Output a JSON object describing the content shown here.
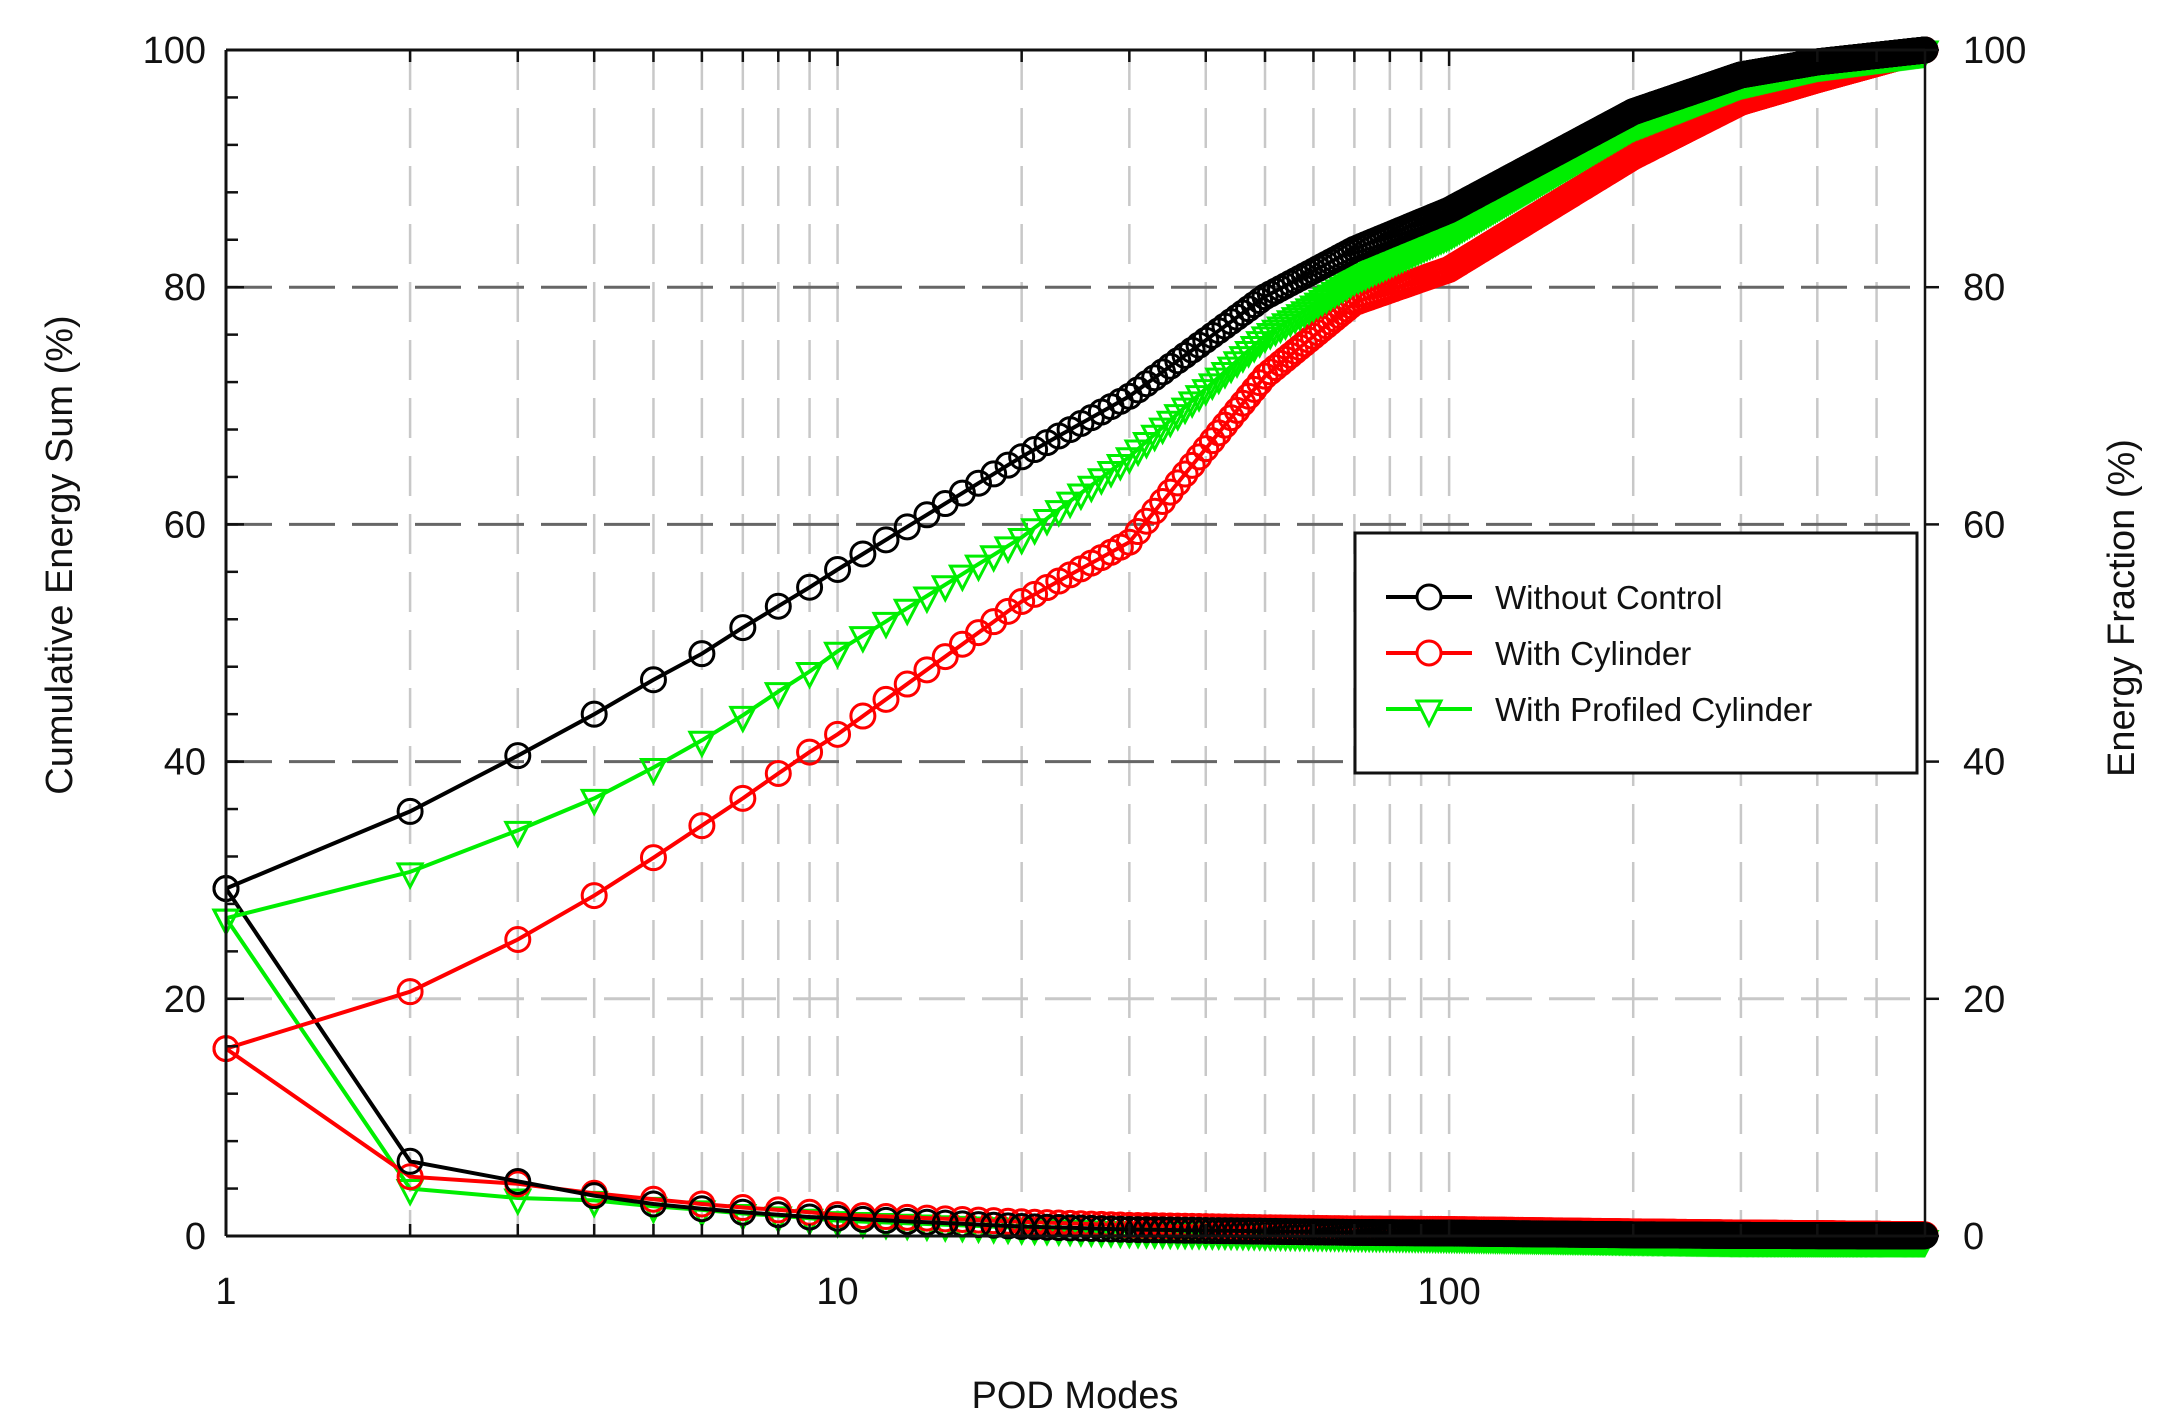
{
  "chart_data": {
    "type": "line",
    "title": "",
    "xlabel": "POD Modes",
    "ylabel": "Cumulative Energy Sum (%)",
    "ylabel_right": "Energy Fraction (%)",
    "x_scale": "log",
    "xlim": [
      1,
      600
    ],
    "ylim": [
      0,
      100
    ],
    "ylim_right": [
      0,
      100
    ],
    "x_ticks": [
      1,
      10,
      100
    ],
    "x_tick_labels": [
      "1",
      "10",
      "100"
    ],
    "y_ticks": [
      0,
      20,
      40,
      60,
      80,
      100
    ],
    "y_tick_labels": [
      "0",
      "20",
      "40",
      "60",
      "80",
      "100"
    ],
    "y_ticks_right": [
      0,
      20,
      40,
      60,
      80,
      100
    ],
    "y_tick_labels_right": [
      "0",
      "20",
      "40",
      "60",
      "80",
      "100"
    ],
    "grid": true,
    "legend_position": "center-right",
    "x": [
      1,
      2,
      3,
      4,
      5,
      6,
      7,
      8,
      9,
      10,
      20,
      30,
      50,
      70,
      100,
      200,
      300,
      400,
      600
    ],
    "series": [
      {
        "name": "Without Control",
        "axis": "left",
        "metric": "cumulative",
        "color": "#000000",
        "marker": "circle",
        "values": [
          29.3,
          35.8,
          40.5,
          44.0,
          46.9,
          49.1,
          51.3,
          53.1,
          54.7,
          56.2,
          65.7,
          70.8,
          79.2,
          83.2,
          86.5,
          94.8,
          97.9,
          99.0,
          100
        ]
      },
      {
        "name": "With Cylinder",
        "axis": "left",
        "metric": "cumulative",
        "color": "#ff0000",
        "marker": "circle",
        "values": [
          15.8,
          20.6,
          25.0,
          28.7,
          31.9,
          34.6,
          36.9,
          39.0,
          40.8,
          42.3,
          53.5,
          58.5,
          72.5,
          78.7,
          81.5,
          91.0,
          95.6,
          97.5,
          100
        ]
      },
      {
        "name": "With Profiled Cylinder",
        "axis": "left",
        "metric": "cumulative",
        "color": "#00ee00",
        "marker": "triangle-down",
        "values": [
          26.8,
          30.7,
          34.2,
          36.9,
          39.5,
          41.8,
          43.9,
          45.9,
          47.6,
          49.3,
          58.9,
          65.7,
          75.9,
          80.7,
          84.5,
          93.7,
          97.3,
          98.8,
          100
        ]
      },
      {
        "name": "Without Control",
        "axis": "right",
        "metric": "fraction",
        "color": "#000000",
        "marker": "circle",
        "values": [
          29.3,
          6.3,
          4.6,
          3.4,
          2.7,
          2.3,
          2.0,
          1.8,
          1.6,
          1.5,
          0.8,
          0.55,
          0.4,
          0.3,
          0.25,
          0.1,
          0.05,
          0.03,
          0.02
        ]
      },
      {
        "name": "With Cylinder",
        "axis": "right",
        "metric": "fraction",
        "color": "#ff0000",
        "marker": "circle",
        "values": [
          15.8,
          5.0,
          4.4,
          3.6,
          3.1,
          2.7,
          2.4,
          2.2,
          2.0,
          1.8,
          1.2,
          0.9,
          0.7,
          0.6,
          0.55,
          0.35,
          0.25,
          0.2,
          0.1
        ]
      },
      {
        "name": "With Profiled Cylinder",
        "axis": "right",
        "metric": "fraction",
        "color": "#00ee00",
        "marker": "triangle-down",
        "values": [
          26.8,
          4.0,
          3.2,
          3.0,
          2.5,
          2.2,
          1.9,
          1.7,
          1.5,
          1.3,
          0.7,
          0.4,
          0.2,
          0.1,
          0.0,
          -0.2,
          -0.3,
          -0.3,
          -0.3
        ]
      }
    ]
  },
  "legend": {
    "items": [
      {
        "label": "Without Control",
        "color": "#000000",
        "marker": "circle"
      },
      {
        "label": "With Cylinder",
        "color": "#ff0000",
        "marker": "circle"
      },
      {
        "label": "With Profiled Cylinder",
        "color": "#00ee00",
        "marker": "triangle-down"
      }
    ]
  },
  "style": {
    "axis_color": "#111111",
    "major_grid_color": "#666666",
    "minor_grid_color": "#c8c8c8"
  }
}
